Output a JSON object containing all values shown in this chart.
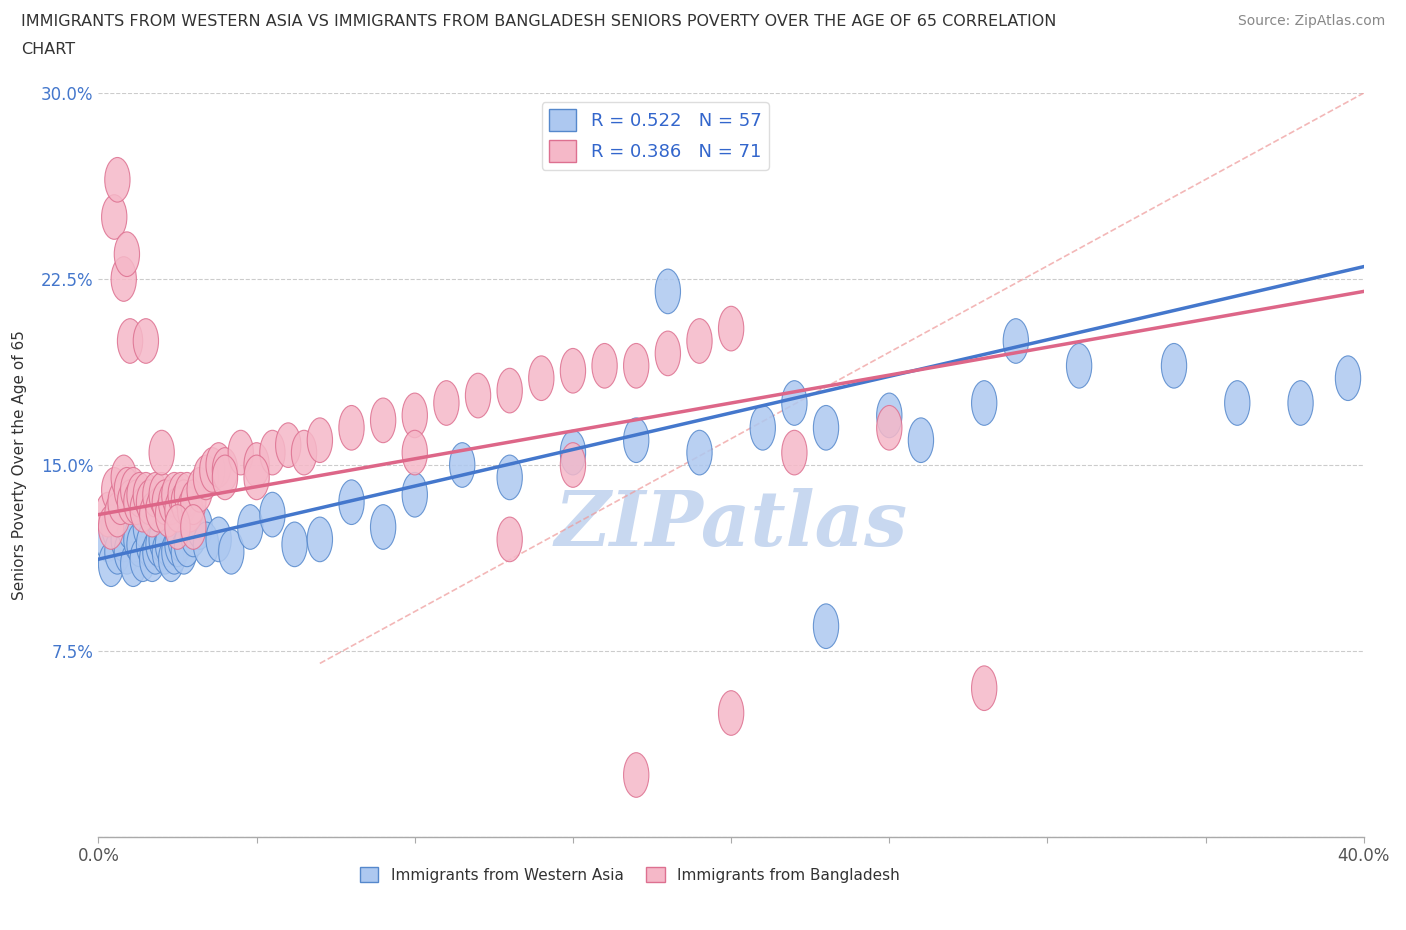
{
  "title_line1": "IMMIGRANTS FROM WESTERN ASIA VS IMMIGRANTS FROM BANGLADESH SENIORS POVERTY OVER THE AGE OF 65 CORRELATION",
  "title_line2": "CHART",
  "source": "Source: ZipAtlas.com",
  "ylabel": "Seniors Poverty Over the Age of 65",
  "xlim": [
    0.0,
    0.4
  ],
  "ylim": [
    0.0,
    0.3
  ],
  "xticks": [
    0.0,
    0.05,
    0.1,
    0.15,
    0.2,
    0.25,
    0.3,
    0.35,
    0.4
  ],
  "yticks": [
    0.0,
    0.075,
    0.15,
    0.225,
    0.3
  ],
  "xticklabels_show": [
    "0.0%",
    "",
    "",
    "",
    "",
    "",
    "",
    "",
    "40.0%"
  ],
  "yticklabels": [
    "",
    "7.5%",
    "15.0%",
    "22.5%",
    "30.0%"
  ],
  "legend_labels": [
    "Immigrants from Western Asia",
    "Immigrants from Bangladesh"
  ],
  "legend_R_blue": "R = 0.522",
  "legend_N_blue": "N = 57",
  "legend_R_pink": "R = 0.386",
  "legend_N_pink": "N = 71",
  "blue_face_color": "#adc8f0",
  "blue_edge_color": "#5588cc",
  "pink_face_color": "#f5b8c8",
  "pink_edge_color": "#dd7090",
  "blue_line_color": "#4477cc",
  "pink_line_color": "#dd6688",
  "dashed_line_color": "#ee9999",
  "watermark": "ZIPatlas",
  "watermark_color": "#c8d8f0",
  "ytick_color": "#4477cc",
  "blue_x": [
    0.003,
    0.004,
    0.005,
    0.006,
    0.007,
    0.008,
    0.009,
    0.01,
    0.011,
    0.012,
    0.013,
    0.014,
    0.015,
    0.016,
    0.017,
    0.018,
    0.019,
    0.02,
    0.021,
    0.022,
    0.023,
    0.024,
    0.025,
    0.026,
    0.027,
    0.028,
    0.03,
    0.032,
    0.034,
    0.038,
    0.042,
    0.048,
    0.055,
    0.062,
    0.07,
    0.08,
    0.09,
    0.1,
    0.115,
    0.13,
    0.15,
    0.17,
    0.19,
    0.21,
    0.23,
    0.25,
    0.28,
    0.31,
    0.34,
    0.36,
    0.38,
    0.395,
    0.23,
    0.26,
    0.18,
    0.22,
    0.29
  ],
  "blue_y": [
    0.12,
    0.11,
    0.125,
    0.115,
    0.13,
    0.12,
    0.115,
    0.125,
    0.11,
    0.12,
    0.118,
    0.112,
    0.125,
    0.118,
    0.112,
    0.115,
    0.118,
    0.12,
    0.115,
    0.118,
    0.112,
    0.115,
    0.118,
    0.12,
    0.115,
    0.118,
    0.122,
    0.125,
    0.118,
    0.12,
    0.115,
    0.125,
    0.13,
    0.118,
    0.12,
    0.135,
    0.125,
    0.138,
    0.15,
    0.145,
    0.155,
    0.16,
    0.155,
    0.165,
    0.165,
    0.17,
    0.175,
    0.19,
    0.19,
    0.175,
    0.175,
    0.185,
    0.085,
    0.16,
    0.22,
    0.175,
    0.2
  ],
  "pink_x": [
    0.003,
    0.004,
    0.005,
    0.006,
    0.007,
    0.008,
    0.009,
    0.01,
    0.011,
    0.012,
    0.013,
    0.014,
    0.015,
    0.016,
    0.017,
    0.018,
    0.019,
    0.02,
    0.021,
    0.022,
    0.023,
    0.024,
    0.025,
    0.026,
    0.027,
    0.028,
    0.029,
    0.03,
    0.032,
    0.034,
    0.036,
    0.038,
    0.04,
    0.045,
    0.05,
    0.055,
    0.06,
    0.065,
    0.07,
    0.08,
    0.09,
    0.1,
    0.11,
    0.12,
    0.13,
    0.14,
    0.15,
    0.16,
    0.17,
    0.18,
    0.19,
    0.2,
    0.005,
    0.006,
    0.008,
    0.009,
    0.01,
    0.015,
    0.02,
    0.025,
    0.03,
    0.04,
    0.05,
    0.1,
    0.13,
    0.15,
    0.17,
    0.2,
    0.22,
    0.25,
    0.28
  ],
  "pink_y": [
    0.13,
    0.125,
    0.14,
    0.13,
    0.135,
    0.145,
    0.14,
    0.135,
    0.14,
    0.135,
    0.138,
    0.132,
    0.138,
    0.135,
    0.13,
    0.138,
    0.132,
    0.138,
    0.135,
    0.13,
    0.135,
    0.138,
    0.132,
    0.138,
    0.135,
    0.138,
    0.132,
    0.135,
    0.14,
    0.145,
    0.148,
    0.15,
    0.148,
    0.155,
    0.15,
    0.155,
    0.158,
    0.155,
    0.16,
    0.165,
    0.168,
    0.17,
    0.175,
    0.178,
    0.18,
    0.185,
    0.188,
    0.19,
    0.19,
    0.195,
    0.2,
    0.205,
    0.25,
    0.265,
    0.225,
    0.235,
    0.2,
    0.2,
    0.155,
    0.125,
    0.125,
    0.145,
    0.145,
    0.155,
    0.12,
    0.15,
    0.025,
    0.05,
    0.155,
    0.165,
    0.06
  ]
}
